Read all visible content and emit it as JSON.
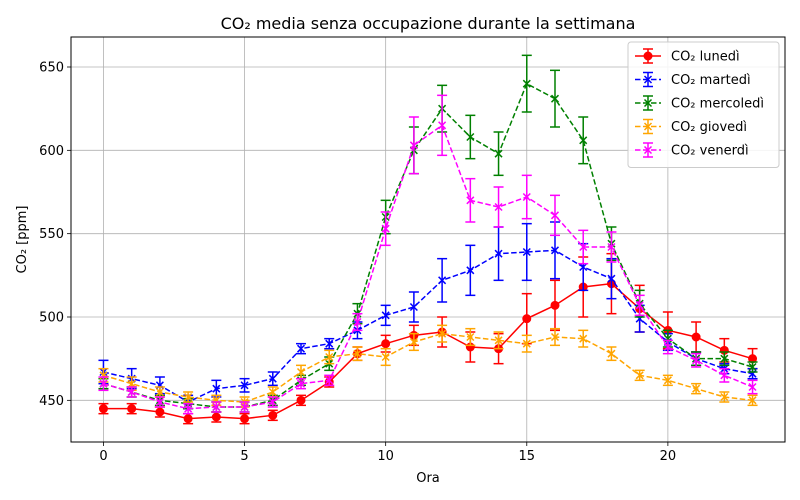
{
  "chart_data": {
    "type": "line",
    "title": "CO₂ media senza occupazione durante la settimana",
    "xlabel": "Ora",
    "ylabel": "CO₂ [ppm]",
    "xlim": [
      -1.15,
      24.15
    ],
    "ylim": [
      425,
      668
    ],
    "xticks": [
      0,
      5,
      10,
      15,
      20
    ],
    "yticks": [
      450,
      500,
      550,
      600,
      650
    ],
    "grid": true,
    "legend_position": "top-right",
    "x": [
      0,
      1,
      2,
      3,
      4,
      5,
      6,
      7,
      8,
      9,
      10,
      11,
      12,
      13,
      14,
      15,
      16,
      17,
      18,
      19,
      20,
      21,
      22,
      23
    ],
    "series": [
      {
        "name": "CO₂ lunedì",
        "color": "#ff0000",
        "marker": "circle",
        "dash": "solid",
        "values": [
          445,
          445,
          443,
          439,
          440,
          439,
          441,
          450,
          461,
          478,
          484,
          489,
          491,
          482,
          481,
          499,
          507,
          518,
          520,
          505,
          492,
          488,
          480,
          475
        ],
        "errors": [
          3,
          3,
          3,
          3,
          3,
          3,
          3,
          3,
          3,
          4,
          5,
          6,
          9,
          9,
          9,
          15,
          15,
          18,
          18,
          14,
          11,
          9,
          7,
          6
        ]
      },
      {
        "name": "CO₂ martedì",
        "color": "#0000ff",
        "marker": "x",
        "dash": "dashed",
        "values": [
          467,
          463,
          459,
          449,
          457,
          459,
          463,
          481,
          484,
          492,
          501,
          506,
          522,
          528,
          538,
          539,
          540,
          530,
          523,
          499,
          485,
          475,
          469,
          466
        ],
        "errors": [
          7,
          6,
          5,
          4,
          5,
          4,
          4,
          3,
          3,
          5,
          6,
          9,
          13,
          15,
          16,
          17,
          17,
          14,
          12,
          8,
          5,
          4,
          3,
          3
        ]
      },
      {
        "name": "CO₂ mercoledì",
        "color": "#008000",
        "marker": "x",
        "dash": "dashed",
        "values": [
          460,
          455,
          450,
          448,
          446,
          446,
          450,
          462,
          472,
          502,
          560,
          600,
          625,
          608,
          598,
          640,
          631,
          606,
          544,
          508,
          487,
          475,
          475,
          470
        ],
        "errors": [
          3,
          3,
          3,
          3,
          3,
          3,
          3,
          3,
          4,
          6,
          10,
          14,
          14,
          13,
          13,
          17,
          17,
          14,
          10,
          8,
          5,
          4,
          4,
          3
        ]
      },
      {
        "name": "CO₂ giovedì",
        "color": "#ffa500",
        "marker": "x",
        "dash": "dashed",
        "values": [
          465,
          460,
          455,
          452,
          450,
          449,
          455,
          467,
          476,
          478,
          476,
          485,
          490,
          488,
          486,
          484,
          488,
          487,
          478,
          465,
          462,
          457,
          452,
          450
        ],
        "errors": [
          4,
          4,
          3,
          3,
          3,
          3,
          3,
          4,
          4,
          4,
          5,
          5,
          5,
          5,
          5,
          5,
          5,
          5,
          4,
          3,
          3,
          3,
          3,
          3
        ]
      },
      {
        "name": "CO₂ venerdì",
        "color": "#ff00ff",
        "marker": "x",
        "dash": "dashed",
        "values": [
          460,
          455,
          449,
          445,
          446,
          446,
          449,
          460,
          462,
          497,
          553,
          603,
          615,
          570,
          566,
          572,
          561,
          542,
          542,
          507,
          482,
          474,
          465,
          458
        ],
        "errors": [
          4,
          3,
          3,
          3,
          3,
          3,
          3,
          3,
          3,
          5,
          10,
          17,
          18,
          13,
          12,
          13,
          12,
          10,
          9,
          6,
          4,
          4,
          4,
          4
        ]
      }
    ]
  }
}
